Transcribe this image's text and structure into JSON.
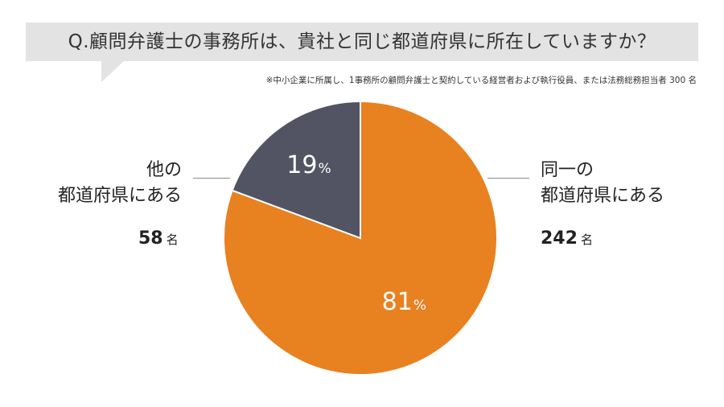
{
  "title": "Q.顧問弁護士の事務所は、貴社と同じ都道府県に所在していますか？",
  "note": "※中小企業に所属し、1事務所の顧問弁護士と契約している経営者および執行役員、または法務総務担当者 300 名",
  "colors": {
    "same": "#e88120",
    "other": "#525463",
    "title_bg": "#e3e3e3"
  },
  "chart_data": {
    "type": "pie",
    "total": 300,
    "unit": "名",
    "slices": [
      {
        "label_lines": [
          "同一の",
          "都道府県にある"
        ],
        "count": 242,
        "percent": 81,
        "percent_label": "81",
        "color": "#e88120"
      },
      {
        "label_lines": [
          "他の",
          "都道府県にある"
        ],
        "count": 58,
        "percent": 19,
        "percent_label": "19",
        "color": "#525463"
      }
    ],
    "percent_sign": "%"
  }
}
